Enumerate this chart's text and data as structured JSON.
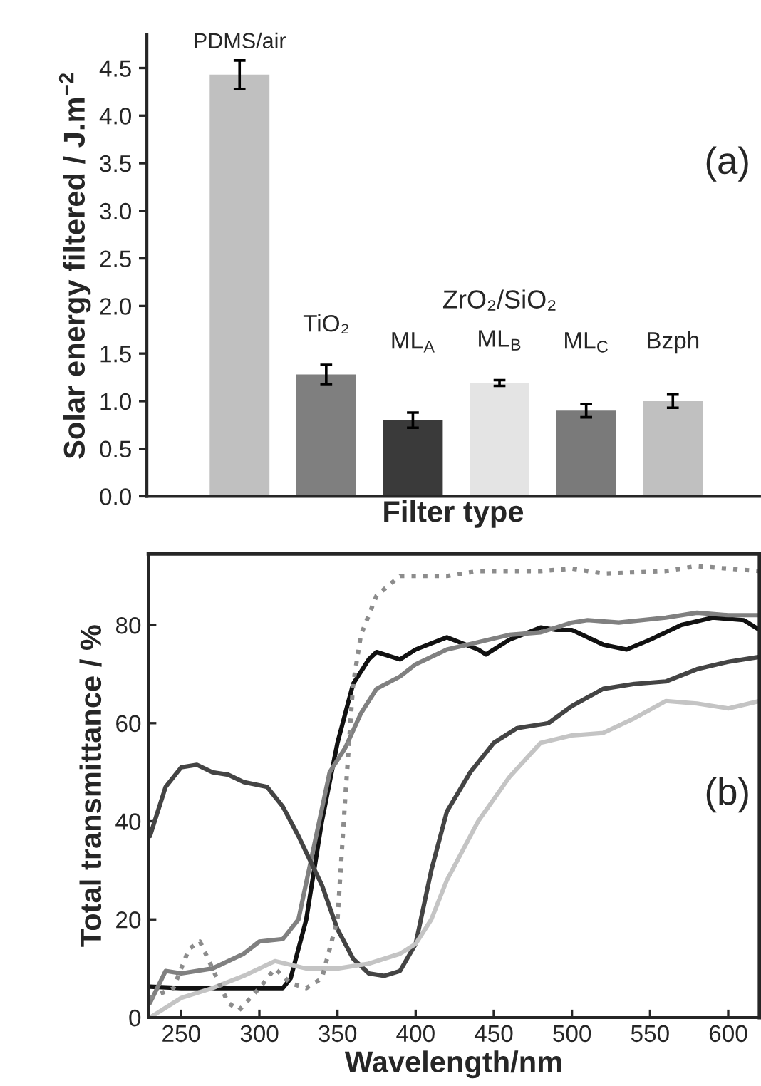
{
  "chart_data": [
    {
      "type": "bar",
      "ylabel": "Solar energy filtered / J.m$^{−2}$",
      "xlabel": "Filter type",
      "categories": [
        "PDMS/air",
        "TiO₂",
        "ML$_{A}$",
        "ML$_{B}$",
        "ML$_{C}$",
        "Bzph"
      ],
      "values": [
        4.43,
        1.28,
        0.8,
        1.19,
        0.9,
        1.0
      ],
      "errors": [
        0.15,
        0.1,
        0.08,
        0.03,
        0.07,
        0.07
      ],
      "colors": [
        "#c0c0c0",
        "#7f7f7f",
        "#3a3a3a",
        "#e4e4e4",
        "#7a7a7a",
        "#c0c0c0"
      ],
      "ylim": [
        0,
        4.85
      ],
      "yticks": [
        {
          "value": 0,
          "label": "0.0"
        },
        {
          "value": 0.5,
          "label": "0.5"
        },
        {
          "value": 1,
          "label": "1.0"
        },
        {
          "value": 1.5,
          "label": "1.5"
        },
        {
          "value": 2,
          "label": "2.0"
        },
        {
          "value": 2.5,
          "label": "2.5"
        },
        {
          "value": 3,
          "label": "3.0"
        },
        {
          "value": 3.5,
          "label": "3.5"
        },
        {
          "value": 4,
          "label": "4.0"
        },
        {
          "value": 4.5,
          "label": "4.5"
        }
      ],
      "annotations": [
        "ZrO₂/SiO₂",
        "(a)"
      ],
      "grid": false,
      "legend": false
    },
    {
      "type": "line",
      "xlabel": "Wavelength/nm",
      "ylabel": "Total transmittance / %",
      "xlim": [
        229,
        620
      ],
      "ylim": [
        0,
        94.5
      ],
      "xticks": [
        250,
        300,
        350,
        400,
        450,
        500,
        550,
        600
      ],
      "yticks": [
        0,
        20,
        40,
        60,
        80
      ],
      "annotations": [
        "(b)"
      ],
      "grid": false,
      "legend": false,
      "series": [
        {
          "color": "#111111",
          "line_style": "solid",
          "x": [
            230,
            250,
            300,
            315,
            320,
            330,
            340,
            350,
            360,
            370,
            375,
            390,
            400,
            420,
            440,
            445,
            460,
            480,
            490,
            500,
            520,
            535,
            550,
            570,
            590,
            610,
            620
          ],
          "values": [
            6.3,
            6,
            6,
            6,
            8,
            20,
            40,
            56,
            68,
            73,
            74.5,
            73,
            75,
            77.5,
            75,
            74,
            77,
            79.5,
            79,
            79,
            76,
            75,
            77,
            80,
            81.5,
            81,
            79
          ]
        },
        {
          "color": "#808080",
          "line_style": "solid",
          "x": [
            230,
            240,
            250,
            270,
            290,
            300,
            315,
            325,
            335,
            345,
            355,
            365,
            375,
            390,
            400,
            420,
            440,
            460,
            480,
            500,
            510,
            530,
            560,
            580,
            600,
            620
          ],
          "values": [
            3,
            9.5,
            9,
            10,
            13,
            15.5,
            16,
            20,
            35,
            50,
            55,
            62,
            67,
            69.5,
            72,
            75,
            76.5,
            78,
            78.5,
            80.5,
            81,
            80.5,
            81.5,
            82.5,
            82,
            82
          ]
        },
        {
          "color": "#444444",
          "line_style": "solid",
          "x": [
            230,
            240,
            250,
            260,
            270,
            280,
            290,
            305,
            315,
            325,
            340,
            350,
            360,
            370,
            380,
            390,
            400,
            410,
            420,
            435,
            450,
            465,
            485,
            500,
            520,
            540,
            560,
            580,
            600,
            620
          ],
          "values": [
            37,
            47,
            51,
            51.5,
            50,
            49.5,
            48,
            47,
            43,
            37,
            27,
            18,
            12,
            9,
            8.5,
            9.5,
            15,
            30,
            42,
            50,
            56,
            59,
            60,
            63.5,
            67,
            68,
            68.5,
            71,
            72.5,
            73.5
          ]
        },
        {
          "color": "#c4c4c4",
          "line_style": "solid",
          "x": [
            230,
            250,
            270,
            290,
            310,
            330,
            350,
            370,
            390,
            400,
            410,
            420,
            440,
            460,
            480,
            500,
            520,
            540,
            560,
            580,
            600,
            620
          ],
          "values": [
            0,
            4,
            6,
            8.5,
            11.5,
            10,
            10,
            11,
            13,
            15,
            20,
            28,
            40,
            49,
            56,
            57.5,
            58,
            61,
            64.5,
            64,
            63,
            64.5
          ]
        },
        {
          "color": "#8c8c8c",
          "line_style": "dotted",
          "x": [
            230,
            245,
            255,
            262,
            270,
            280,
            287,
            300,
            310,
            320,
            330,
            340,
            350,
            355,
            360,
            365,
            375,
            390,
            420,
            440,
            480,
            500,
            520,
            560,
            580,
            620
          ],
          "values": [
            4,
            6,
            14,
            15.5,
            10,
            3,
            1.5,
            6,
            10,
            7,
            6,
            8,
            20,
            45,
            68,
            78,
            86,
            90,
            90,
            91,
            91,
            91.5,
            90.5,
            91,
            92,
            91
          ]
        }
      ]
    }
  ]
}
